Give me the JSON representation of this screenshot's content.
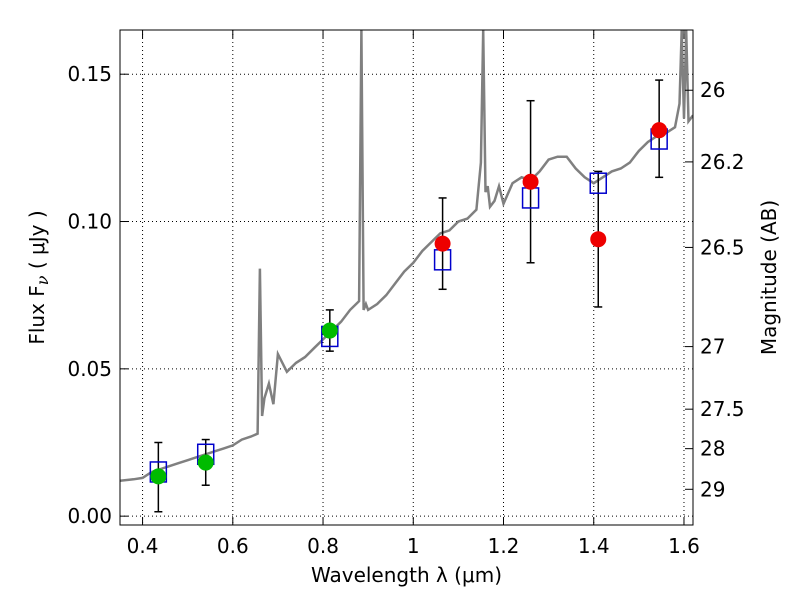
{
  "chart_data": {
    "type": "scatter",
    "xlabel": "Wavelength  λ (μm)",
    "ylabel": "Flux  F",
    "ylabel_sub": "ν",
    "ylabel_unit": "  ( μJy )",
    "y2label": "Magnitude (AB)",
    "xlim": [
      0.35,
      1.62
    ],
    "ylim": [
      -0.003,
      0.165
    ],
    "x_ticks": [
      0.4,
      0.6,
      0.8,
      1.0,
      1.2,
      1.4,
      1.6
    ],
    "x_tick_labels": [
      "0.4",
      "0.6",
      "0.8",
      "1",
      "1.2",
      "1.4",
      "1.6"
    ],
    "y_ticks": [
      0.0,
      0.05,
      0.1,
      0.15
    ],
    "y_tick_labels": [
      "0.00",
      "0.05",
      "0.10",
      "0.15"
    ],
    "y2_ticks": [
      26,
      26.2,
      26.5,
      27,
      27.5,
      28,
      29
    ],
    "y2_tick_labels": [
      "26",
      "26.2",
      "26.5",
      "27",
      "27.5",
      "28",
      "29"
    ],
    "grid": true,
    "colors": {
      "model": "#808080",
      "model_points": "#0000cc",
      "green_points": "#00bb00",
      "red_points": "#ee0000",
      "errorbars": "#000000"
    },
    "series": [
      {
        "kind": "line",
        "x": [
          0.35,
          0.38,
          0.4,
          0.42,
          0.44,
          0.46,
          0.48,
          0.5,
          0.52,
          0.54,
          0.56,
          0.58,
          0.6,
          0.62,
          0.64,
          0.655,
          0.66,
          0.665,
          0.67,
          0.68,
          0.69,
          0.7,
          0.71,
          0.72,
          0.74,
          0.76,
          0.78,
          0.8,
          0.82,
          0.84,
          0.86,
          0.88,
          0.885,
          0.89,
          0.895,
          0.9,
          0.92,
          0.94,
          0.96,
          0.98,
          1.0,
          1.02,
          1.04,
          1.06,
          1.08,
          1.1,
          1.12,
          1.14,
          1.15,
          1.155,
          1.16,
          1.165,
          1.17,
          1.18,
          1.19,
          1.2,
          1.22,
          1.24,
          1.26,
          1.28,
          1.3,
          1.32,
          1.34,
          1.36,
          1.38,
          1.4,
          1.42,
          1.44,
          1.46,
          1.48,
          1.5,
          1.52,
          1.54,
          1.56,
          1.58,
          1.59,
          1.595,
          1.6,
          1.605,
          1.61,
          1.62
        ],
        "y": [
          0.012,
          0.0125,
          0.013,
          0.015,
          0.016,
          0.017,
          0.018,
          0.019,
          0.02,
          0.021,
          0.022,
          0.023,
          0.024,
          0.026,
          0.027,
          0.028,
          0.084,
          0.034,
          0.04,
          0.045,
          0.038,
          0.055,
          0.052,
          0.049,
          0.052,
          0.054,
          0.057,
          0.06,
          0.063,
          0.066,
          0.07,
          0.073,
          0.165,
          0.07,
          0.072,
          0.07,
          0.072,
          0.075,
          0.079,
          0.083,
          0.086,
          0.09,
          0.093,
          0.096,
          0.097,
          0.1,
          0.101,
          0.104,
          0.12,
          0.165,
          0.11,
          0.112,
          0.105,
          0.107,
          0.112,
          0.106,
          0.113,
          0.115,
          0.114,
          0.117,
          0.121,
          0.122,
          0.122,
          0.118,
          0.115,
          0.113,
          0.115,
          0.117,
          0.118,
          0.12,
          0.124,
          0.127,
          0.129,
          0.13,
          0.132,
          0.14,
          0.165,
          0.135,
          0.165,
          0.134,
          0.136
        ]
      },
      {
        "kind": "open-square",
        "x": [
          0.435,
          0.54,
          0.815,
          1.065,
          1.26,
          1.41,
          1.545
        ],
        "y": [
          0.015,
          0.021,
          0.061,
          0.087,
          0.108,
          0.113,
          0.128
        ]
      },
      {
        "kind": "filled-circle-green",
        "x": [
          0.435,
          0.54,
          0.815
        ],
        "y": [
          0.0135,
          0.0182,
          0.063
        ],
        "yerr_low": [
          0.0015,
          0.0105,
          0.056
        ],
        "yerr_high": [
          0.025,
          0.026,
          0.07
        ]
      },
      {
        "kind": "filled-circle-red",
        "x": [
          1.065,
          1.26,
          1.41,
          1.545
        ],
        "y": [
          0.0925,
          0.1135,
          0.094,
          0.131
        ],
        "yerr_low": [
          0.077,
          0.086,
          0.071,
          0.115
        ],
        "yerr_high": [
          0.108,
          0.141,
          0.117,
          0.148
        ]
      }
    ]
  }
}
